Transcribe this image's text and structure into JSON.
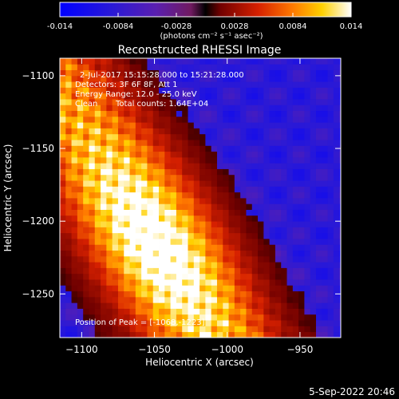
{
  "colorbar": {
    "min": -0.014,
    "max": 0.014,
    "tick_labels": [
      "-0.014",
      "-0.0084",
      "-0.0028",
      "0.0028",
      "0.0084",
      "0.014"
    ],
    "tick_values": [
      -0.014,
      -0.0084,
      -0.0028,
      0.0028,
      0.0084,
      0.014
    ],
    "units_label": "(photons cm⁻² s⁻¹ asec⁻²)"
  },
  "chart_data": {
    "type": "heatmap",
    "title": "Reconstructed RHESSI Image",
    "xlabel": "Heliocentric X (arcsec)",
    "ylabel": "Heliocentric Y (arcsec)",
    "xlim": [
      -1115,
      -922
    ],
    "ylim": [
      -1280,
      -1088
    ],
    "xticks": [
      -1100,
      -1050,
      -1000,
      -950
    ],
    "yticks": [
      -1250,
      -1200,
      -1150,
      -1100
    ],
    "xtick_labels": [
      "−1100",
      "−1050",
      "−1000",
      "−950"
    ],
    "ytick_labels": [
      "−1250",
      "−1200",
      "−1150",
      "−1100"
    ],
    "colormap": "rhessi-heat",
    "peak": [
      -1068,
      -1223
    ],
    "annotations": {
      "line1": "2-Jul-2017 15:15:28.000 to 15:21:28.000",
      "line2": "Detectors: 3F 6F 8F, Att 1",
      "line3": "Energy Range: 12.0 - 25.0 keV",
      "line4_method": "Clean",
      "line4_counts": "Total counts: 1.64E+04",
      "peak_text": "Position of Peak = [-1068,-1223]"
    }
  },
  "footer": {
    "date": "5-Sep-2022 20:46"
  }
}
